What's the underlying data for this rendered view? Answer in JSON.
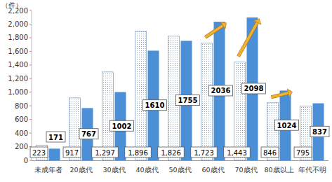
{
  "chart_data": {
    "type": "bar",
    "y_label": "（件）",
    "categories": [
      "未成年者",
      "20歳代",
      "30歳代",
      "40歳代",
      "50歳代",
      "60歳代",
      "70歳代",
      "80歳以上",
      "年代不明"
    ],
    "series": [
      {
        "color": "#8aa6c8",
        "values": [
          223,
          917,
          1297,
          1896,
          1826,
          1723,
          1443,
          846,
          795
        ],
        "value_labels": [
          "223",
          "917",
          "1,297",
          "1,896",
          "1,826",
          "1,723",
          "1,443",
          "846",
          "795"
        ]
      },
      {
        "color": "#4b8fd6",
        "values": [
          171,
          767,
          1002,
          1610,
          1755,
          2036,
          2098,
          1024,
          837
        ]
      }
    ],
    "ylim": [
      0,
      2200
    ],
    "yticks": [
      0,
      200,
      400,
      600,
      800,
      {
        "value": 1000,
        "label": "1,000"
      },
      {
        "value": 1200,
        "label": "1,200"
      },
      {
        "value": 1400,
        "label": "1,400"
      },
      {
        "value": 1600,
        "label": "1,600"
      },
      {
        "value": 1800,
        "label": "1,800"
      },
      {
        "value": 2000,
        "label": "2,000"
      },
      {
        "value": 2200,
        "label": "2,200"
      }
    ],
    "grid": false,
    "data_labels": true
  }
}
